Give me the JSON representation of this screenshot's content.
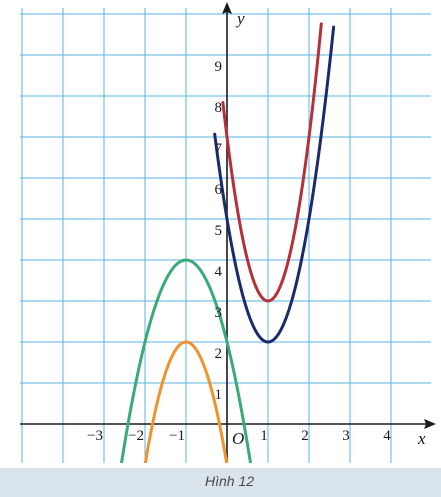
{
  "chart_data": {
    "type": "line",
    "title": "",
    "caption": "Hình 12",
    "xlabel": "x",
    "ylabel": "y",
    "origin_label": "O",
    "xlim": [
      -5.5,
      4.8
    ],
    "ylim": [
      -0.95,
      10.2
    ],
    "grid": true,
    "x_ticks": [
      -3,
      -2,
      -1,
      1,
      2,
      3,
      4
    ],
    "y_ticks": [
      1,
      2,
      3,
      4,
      5,
      6,
      7,
      8,
      9
    ],
    "colors": {
      "grid": "#5ab4e4",
      "axis": "#1a1a1a",
      "caption_bar": "#d8e3ec"
    },
    "series": [
      {
        "color": "#1b2a6b",
        "equation": "y = 3(x - 1)^2 + 2",
        "vertex": [
          1,
          2
        ],
        "points": [
          [
            -0.3,
            7.07
          ],
          [
            0,
            5
          ],
          [
            0.5,
            2.75
          ],
          [
            1,
            2
          ],
          [
            1.5,
            2.75
          ],
          [
            2,
            5
          ],
          [
            2.5,
            8.75
          ],
          [
            2.6,
            9.68
          ]
        ]
      },
      {
        "color": "#b5303a",
        "equation": "y = 4(x - 1)^2 + 3",
        "vertex": [
          1,
          3
        ],
        "points": [
          [
            -0.1,
            7.84
          ],
          [
            0,
            7
          ],
          [
            0.5,
            4
          ],
          [
            1,
            3
          ],
          [
            1.5,
            4
          ],
          [
            2,
            7
          ],
          [
            2.3,
            9.76
          ]
        ]
      },
      {
        "color": "#3aaa78",
        "equation": "y = -2(x + 1)^2 + 4",
        "vertex": [
          -1,
          4
        ],
        "points": [
          [
            -2.7,
            -1.78
          ],
          [
            -2.5,
            -0.5
          ],
          [
            -2,
            2
          ],
          [
            -1,
            4
          ],
          [
            0,
            2
          ],
          [
            0.5,
            -0.5
          ],
          [
            0.7,
            -1.78
          ]
        ]
      },
      {
        "color": "#f0922d",
        "equation": "y = -3(x + 1)^2 + 2",
        "vertex": [
          -1,
          2
        ],
        "points": [
          [
            -2.1,
            -1.63
          ],
          [
            -2,
            -1
          ],
          [
            -1.5,
            1.25
          ],
          [
            -1,
            2
          ],
          [
            -0.5,
            1.25
          ],
          [
            0,
            -1
          ],
          [
            0.1,
            -1.63
          ]
        ]
      }
    ]
  }
}
